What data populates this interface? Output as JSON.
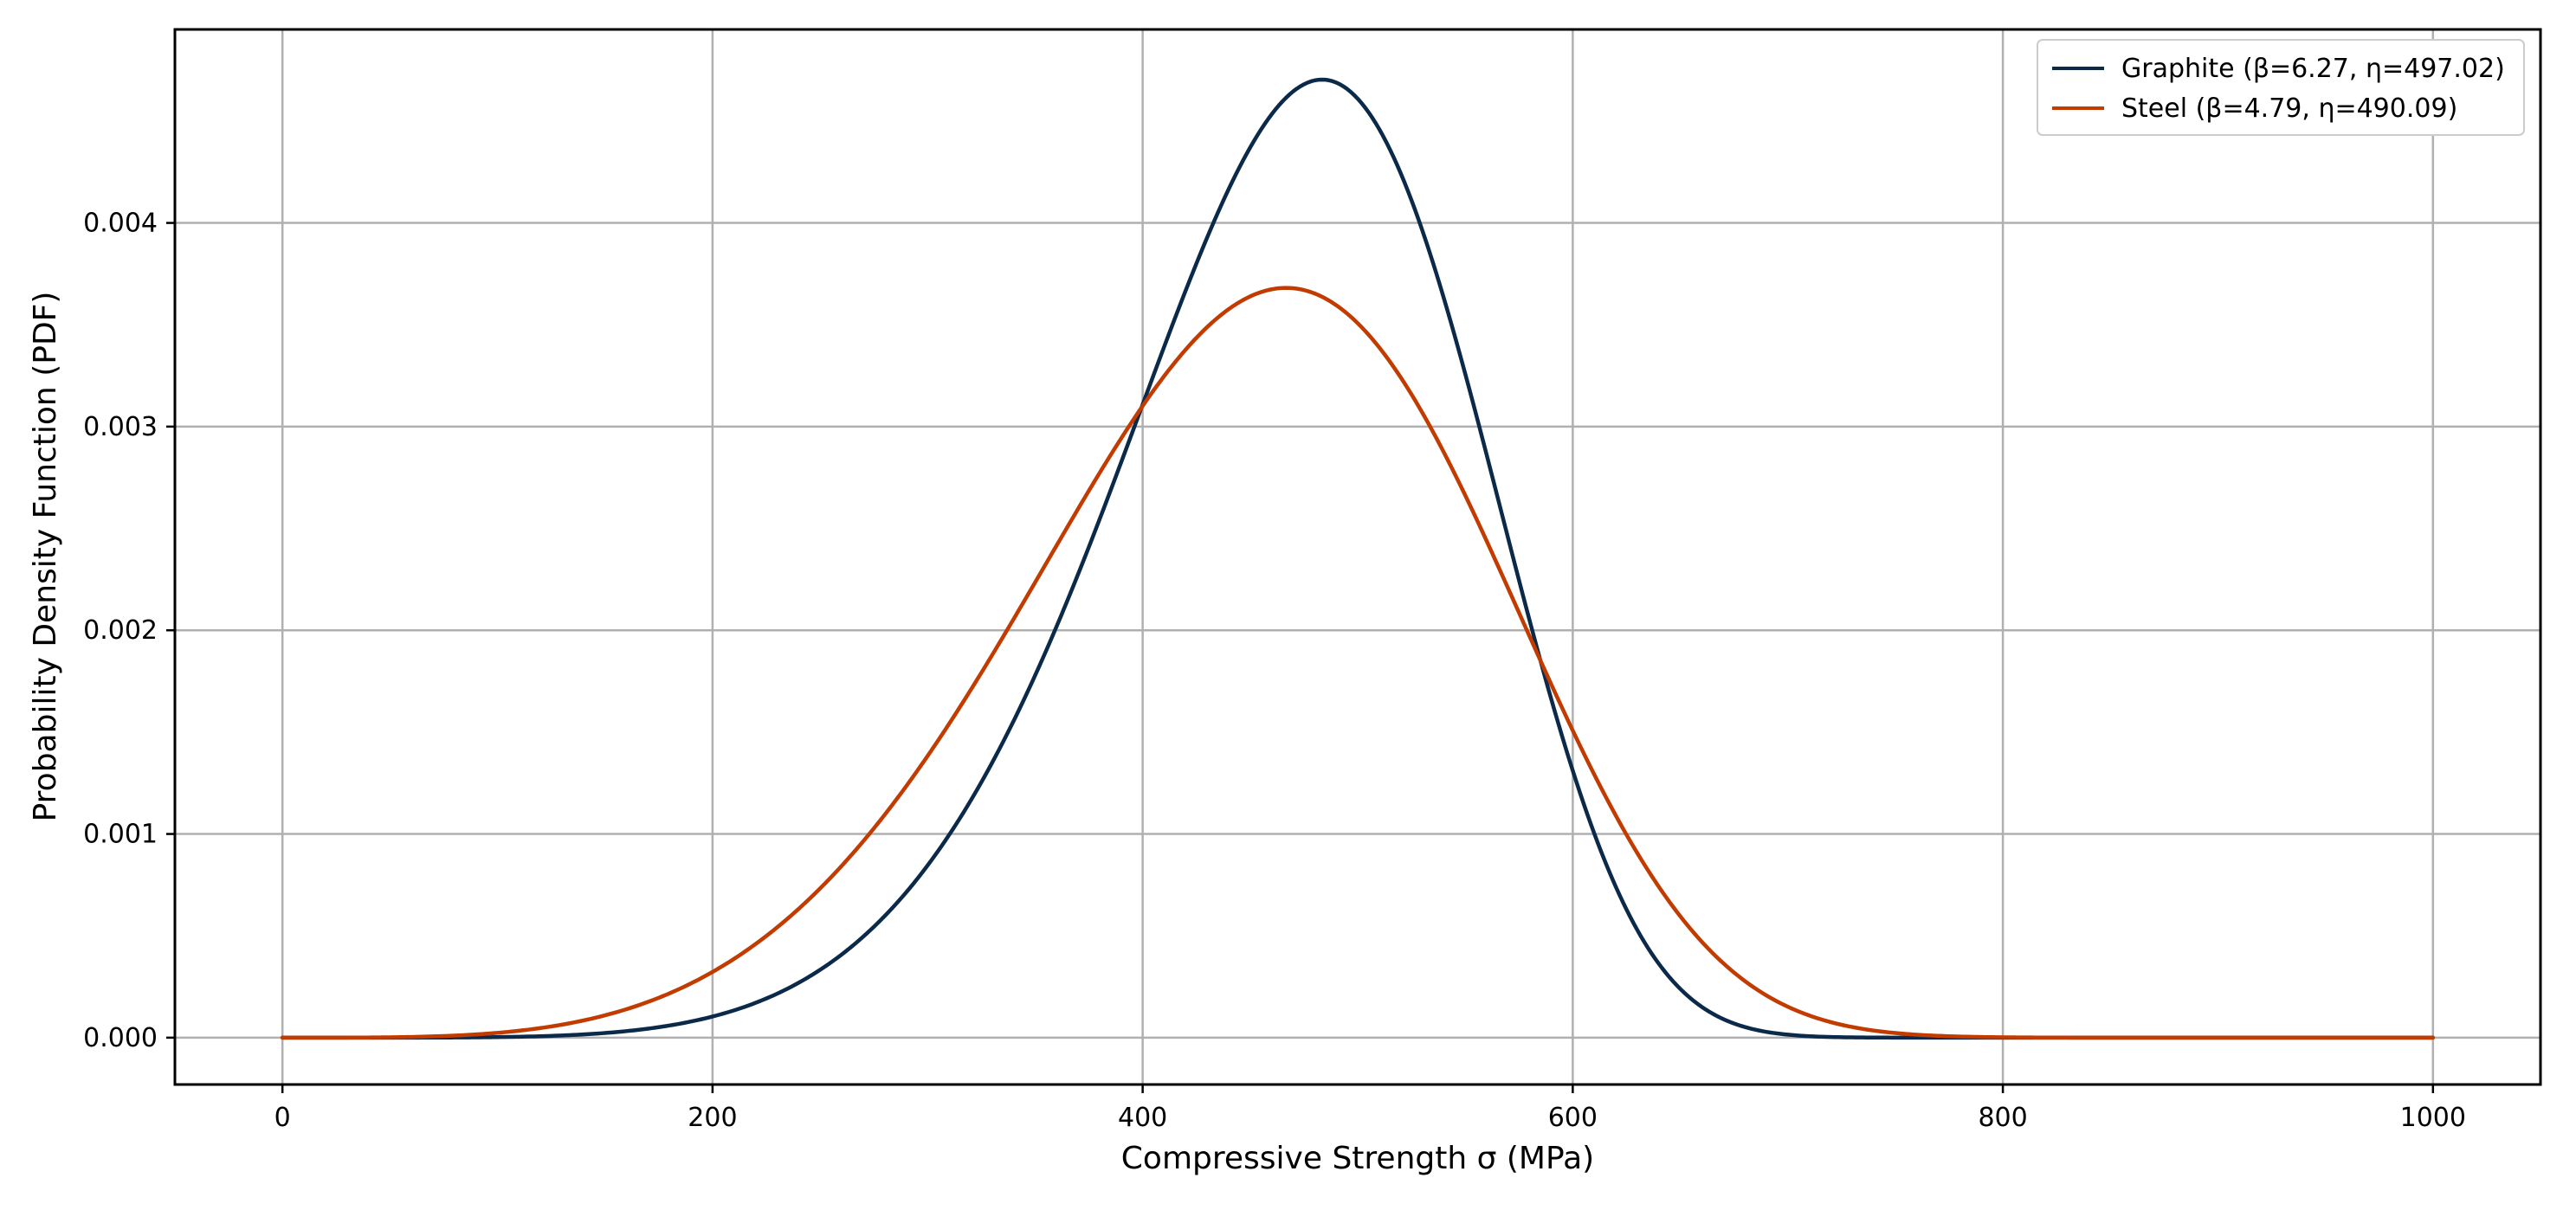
{
  "chart_data": {
    "type": "line",
    "title": "",
    "xlabel": "Compressive Strength σ (MPa)",
    "ylabel": "Probability Density Function (PDF)",
    "xlim": [
      -50,
      1050
    ],
    "ylim": [
      -0.00023,
      0.00495
    ],
    "xticks": [
      0,
      200,
      400,
      600,
      800,
      1000
    ],
    "xtick_labels": [
      "0",
      "200",
      "400",
      "600",
      "800",
      "1000"
    ],
    "yticks": [
      0.0,
      0.001,
      0.002,
      0.003,
      0.004
    ],
    "ytick_labels": [
      "0.000",
      "0.001",
      "0.002",
      "0.003",
      "0.004"
    ],
    "grid": true,
    "legend_position": "top-right",
    "x_range": [
      0,
      1000
    ],
    "series": [
      {
        "name": "Graphite (β=6.27, η=497.02)",
        "color": "#0b2a4a",
        "distribution": "weibull",
        "beta": 6.27,
        "eta": 497.02
      },
      {
        "name": "Steel (β=4.79, η=490.09)",
        "color": "#c23b00",
        "distribution": "weibull",
        "beta": 4.79,
        "eta": 490.09
      }
    ]
  }
}
